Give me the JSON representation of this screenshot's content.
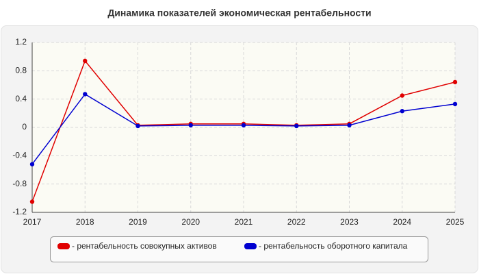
{
  "chart_data": {
    "type": "line",
    "title": "Динамика показателей экономическая рентабельности",
    "categories": [
      "2017",
      "2018",
      "2019",
      "2020",
      "2021",
      "2022",
      "2023",
      "2024",
      "2025"
    ],
    "series": [
      {
        "name": "- рентабельность совокупных активов",
        "color": "#e00000",
        "values": [
          -1.05,
          0.94,
          0.03,
          0.05,
          0.05,
          0.03,
          0.05,
          0.45,
          0.64
        ]
      },
      {
        "name": "- рентабельность оборотного капитала",
        "color": "#0000d0",
        "values": [
          -0.52,
          0.47,
          0.02,
          0.03,
          0.03,
          0.02,
          0.03,
          0.23,
          0.33
        ]
      }
    ],
    "ylim": [
      -1.2,
      1.2
    ],
    "yticks": [
      -1.2,
      -0.8,
      -0.4,
      0,
      0.4,
      0.8,
      1.2
    ],
    "grid": true,
    "legend": "bottom"
  }
}
